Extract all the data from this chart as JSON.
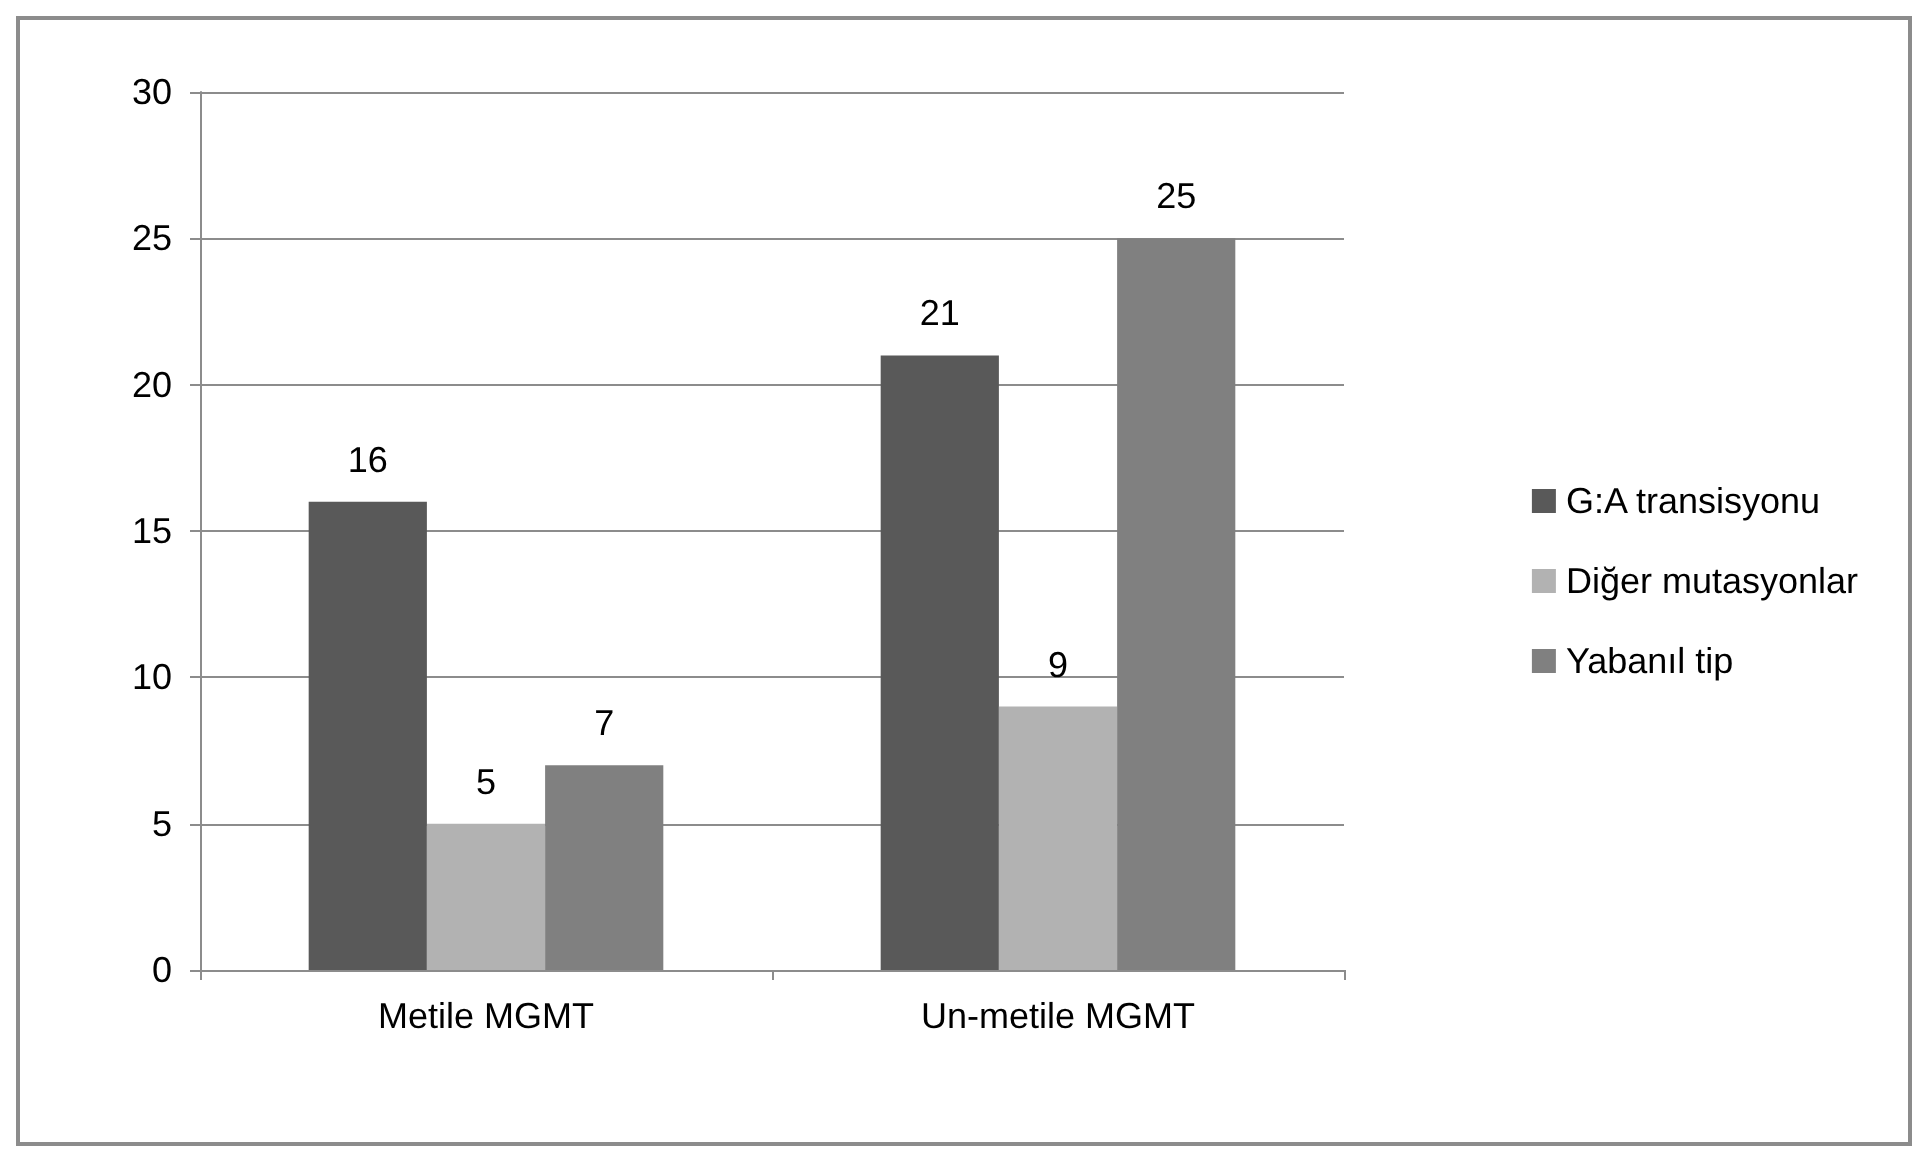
{
  "chart_data": {
    "type": "bar",
    "categories": [
      "Metile MGMT",
      "Un-metile MGMT"
    ],
    "series": [
      {
        "name": "G:A transisyonu",
        "color": "#595959",
        "values": [
          16,
          21
        ]
      },
      {
        "name": "Diğer mutasyonlar",
        "color": "#b2b2b2",
        "values": [
          5,
          9
        ]
      },
      {
        "name": "Yabanıl tip",
        "color": "#808080",
        "values": [
          7,
          25
        ]
      }
    ],
    "ylim": [
      0,
      30
    ],
    "yticks": [
      0,
      5,
      10,
      15,
      20,
      25,
      30
    ],
    "grid": "y",
    "legend": "right",
    "data_labels": true
  }
}
